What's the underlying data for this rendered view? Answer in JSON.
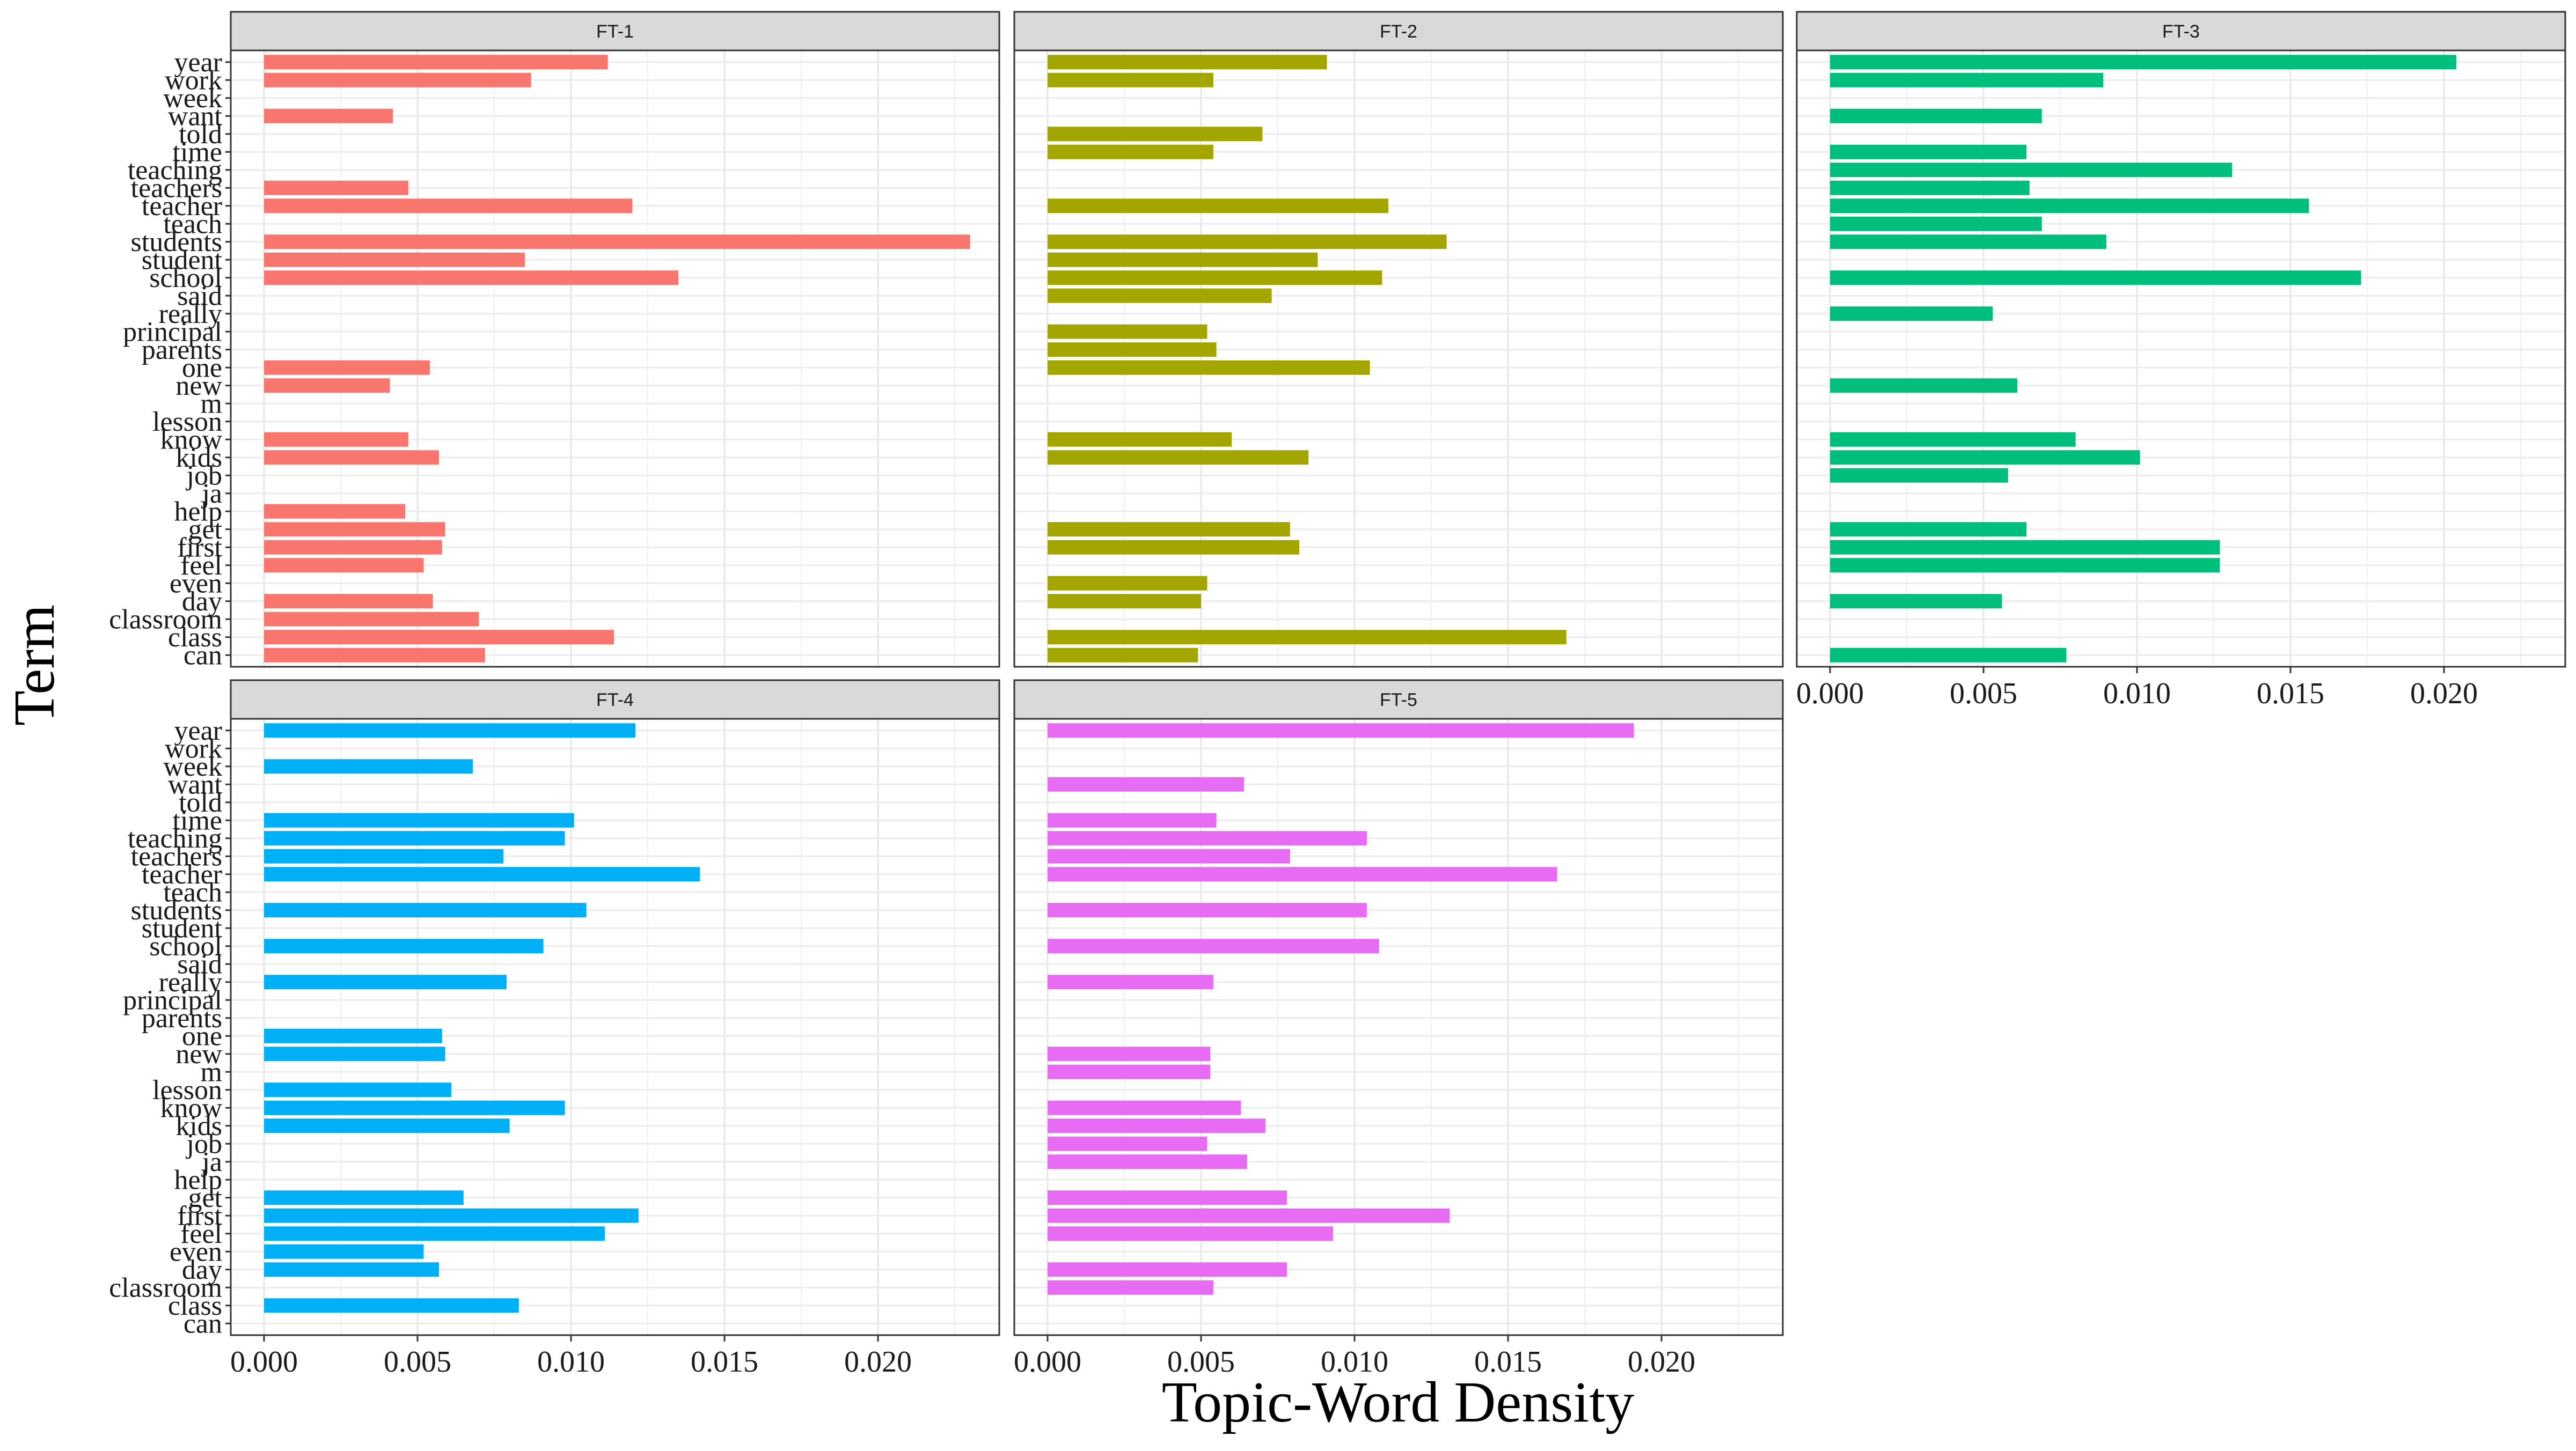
{
  "chart_data": {
    "type": "bar",
    "orientation": "horizontal",
    "layout": "faceted grid, 2 rows x 3 columns, shared x and y axes",
    "xlabel": "Topic-Word Density",
    "ylabel": "Term",
    "xlim": [
      0,
      0.0235
    ],
    "x_ticks": [
      0.0,
      0.005,
      0.01,
      0.015,
      0.02
    ],
    "x_tick_labels": [
      "0.000",
      "0.005",
      "0.010",
      "0.015",
      "0.020"
    ],
    "grid": true,
    "legend": "none",
    "terms": [
      "year",
      "work",
      "week",
      "want",
      "told",
      "time",
      "teaching",
      "teachers",
      "teacher",
      "teach",
      "students",
      "student",
      "school",
      "said",
      "really",
      "principal",
      "parents",
      "one",
      "new",
      "m",
      "lesson",
      "know",
      "kids",
      "job",
      "ja",
      "help",
      "get",
      "first",
      "feel",
      "even",
      "day",
      "classroom",
      "class",
      "can"
    ],
    "facets": [
      {
        "name": "FT-1",
        "color": "#F8766D",
        "values": [
          0.0112,
          0.0087,
          null,
          0.0042,
          null,
          null,
          null,
          0.0047,
          0.012,
          null,
          0.023,
          0.0085,
          0.0135,
          null,
          null,
          null,
          null,
          0.0054,
          0.0041,
          null,
          null,
          0.0047,
          0.0057,
          null,
          null,
          0.0046,
          0.0059,
          0.0058,
          0.0052,
          null,
          0.0055,
          0.007,
          0.0114,
          0.0072
        ]
      },
      {
        "name": "FT-2",
        "color": "#A3A500",
        "values": [
          0.0091,
          0.0054,
          null,
          null,
          0.007,
          0.0054,
          null,
          null,
          0.0111,
          null,
          0.013,
          0.0088,
          0.0109,
          0.0073,
          null,
          0.0052,
          0.0055,
          0.0105,
          null,
          null,
          null,
          0.006,
          0.0085,
          null,
          null,
          null,
          0.0079,
          0.0082,
          null,
          0.0052,
          0.005,
          null,
          0.0169,
          0.0049
        ]
      },
      {
        "name": "FT-3",
        "color": "#00BF7D",
        "values": [
          0.0204,
          0.0089,
          null,
          0.0069,
          null,
          0.0064,
          0.0131,
          0.0065,
          0.0156,
          0.0069,
          0.009,
          null,
          0.0173,
          null,
          0.0053,
          null,
          null,
          null,
          0.0061,
          null,
          null,
          0.008,
          0.0101,
          0.0058,
          null,
          null,
          0.0064,
          0.0127,
          0.0127,
          null,
          0.0056,
          null,
          null,
          0.0077
        ]
      },
      {
        "name": "FT-4",
        "color": "#00B0F6",
        "values": [
          0.0121,
          null,
          0.0068,
          null,
          null,
          0.0101,
          0.0098,
          0.0078,
          0.0142,
          null,
          0.0105,
          null,
          0.0091,
          null,
          0.0079,
          null,
          null,
          0.0058,
          0.0059,
          null,
          0.0061,
          0.0098,
          0.008,
          null,
          null,
          null,
          0.0065,
          0.0122,
          0.0111,
          0.0052,
          0.0057,
          null,
          0.0083,
          null
        ]
      },
      {
        "name": "FT-5",
        "color": "#E76BF3",
        "values": [
          0.0191,
          null,
          null,
          0.0064,
          null,
          0.0055,
          0.0104,
          0.0079,
          0.0166,
          null,
          0.0104,
          null,
          0.0108,
          null,
          0.0054,
          null,
          null,
          null,
          0.0053,
          0.0053,
          null,
          0.0063,
          0.0071,
          0.0052,
          0.0065,
          null,
          0.0078,
          0.0131,
          0.0093,
          null,
          0.0078,
          0.0054,
          null,
          null
        ]
      }
    ]
  }
}
